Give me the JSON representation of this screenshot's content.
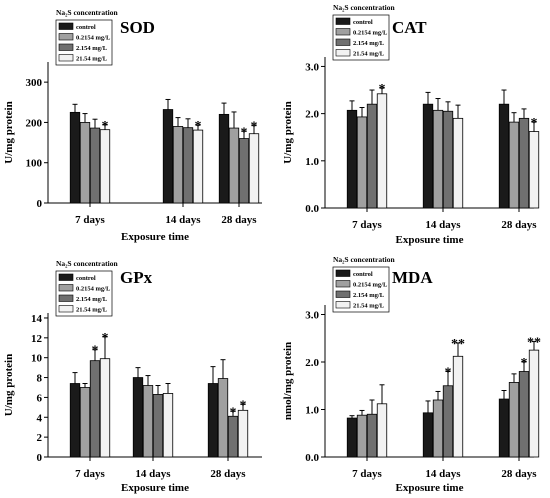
{
  "legend_title": "Na₂S concentration",
  "legend_entries": [
    {
      "label": "control",
      "color": "#1a1a1a"
    },
    {
      "label": "0.2154 mg/L",
      "color": "#a0a0a0"
    },
    {
      "label": "2.154 mg/L",
      "color": "#707070"
    },
    {
      "label": "21.54 mg/L",
      "color": "#f2f2f2"
    }
  ],
  "chart_data": [
    {
      "type": "bar",
      "title": "SOD",
      "xlabel": "Exposure time",
      "ylabel": "U/mg protein",
      "categories": [
        "7 days",
        "14 days",
        "28 days"
      ],
      "ylim": [
        0,
        350
      ],
      "yticks": [
        "0",
        "100",
        "200",
        "300"
      ],
      "yticks_values": [
        0,
        100,
        200,
        300
      ],
      "series": [
        {
          "name": "control",
          "values": [
            225,
            232,
            220
          ],
          "errors": [
            20,
            25,
            28
          ],
          "sig": [
            "",
            "",
            ""
          ]
        },
        {
          "name": "0.2154 mg/L",
          "values": [
            200,
            190,
            186
          ],
          "errors": [
            22,
            22,
            40
          ],
          "sig": [
            "",
            "",
            ""
          ]
        },
        {
          "name": "2.154 mg/L",
          "values": [
            186,
            187,
            160
          ],
          "errors": [
            22,
            22,
            18
          ],
          "sig": [
            "",
            "",
            "*"
          ]
        },
        {
          "name": "21.54 mg/L",
          "values": [
            182,
            181,
            172
          ],
          "errors": [
            12,
            12,
            20
          ],
          "sig": [
            "*",
            "*",
            "*"
          ]
        }
      ]
    },
    {
      "type": "bar",
      "title": "CAT",
      "xlabel": "Exposure time",
      "ylabel": "U/mg protein",
      "categories": [
        "7 days",
        "14 days",
        "28 days"
      ],
      "ylim": [
        0,
        3.2
      ],
      "yticks": [
        "0.0",
        "1.0",
        "2.0",
        "3.0"
      ],
      "yticks_values": [
        0,
        1,
        2,
        3
      ],
      "series": [
        {
          "name": "control",
          "values": [
            2.07,
            2.2,
            2.2
          ],
          "errors": [
            0.2,
            0.25,
            0.3
          ],
          "sig": [
            "",
            "",
            ""
          ]
        },
        {
          "name": "0.2154 mg/L",
          "values": [
            1.93,
            2.07,
            1.82
          ],
          "errors": [
            0.2,
            0.25,
            0.2
          ],
          "sig": [
            "",
            "",
            ""
          ]
        },
        {
          "name": "2.154 mg/L",
          "values": [
            2.2,
            2.05,
            1.9
          ],
          "errors": [
            0.3,
            0.2,
            0.2
          ],
          "sig": [
            "",
            "",
            ""
          ]
        },
        {
          "name": "21.54 mg/L",
          "values": [
            2.42,
            1.9,
            1.62
          ],
          "errors": [
            0.12,
            0.28,
            0.2
          ],
          "sig": [
            "*",
            "",
            "*"
          ]
        }
      ]
    },
    {
      "type": "bar",
      "title": "GPx",
      "xlabel": "Exposure time",
      "ylabel": "U/mg protein",
      "categories": [
        "7 days",
        "14 days",
        "28 days"
      ],
      "ylim": [
        0,
        14.5
      ],
      "yticks": [
        "0",
        "2",
        "4",
        "6",
        "8",
        "10",
        "12",
        "14"
      ],
      "yticks_values": [
        0,
        2,
        4,
        6,
        8,
        10,
        12,
        14
      ],
      "series": [
        {
          "name": "control",
          "values": [
            7.4,
            8.0,
            7.4
          ],
          "errors": [
            1.1,
            1.0,
            1.7
          ],
          "sig": [
            "",
            "",
            ""
          ]
        },
        {
          "name": "0.2154 mg/L",
          "values": [
            7.0,
            7.2,
            7.9
          ],
          "errors": [
            0.4,
            1.0,
            1.9
          ],
          "sig": [
            "",
            "",
            ""
          ]
        },
        {
          "name": "2.154 mg/L",
          "values": [
            9.7,
            6.3,
            4.1
          ],
          "errors": [
            1.1,
            0.9,
            0.5
          ],
          "sig": [
            "*",
            "",
            "*"
          ]
        },
        {
          "name": "21.54 mg/L",
          "values": [
            9.9,
            6.4,
            4.7
          ],
          "errors": [
            2.2,
            1.0,
            0.6
          ],
          "sig": [
            "*",
            "",
            "*"
          ]
        }
      ]
    },
    {
      "type": "bar",
      "title": "MDA",
      "xlabel": "Exposure time",
      "ylabel": "nmol/mg protein",
      "categories": [
        "7 days",
        "14 days",
        "28 days"
      ],
      "ylim": [
        0,
        3.2
      ],
      "yticks": [
        "0.0",
        "1.0",
        "2.0",
        "3.0"
      ],
      "yticks_values": [
        0,
        1,
        2,
        3
      ],
      "series": [
        {
          "name": "control",
          "values": [
            0.82,
            0.93,
            1.22
          ],
          "errors": [
            0.05,
            0.25,
            0.18
          ],
          "sig": [
            "",
            "",
            ""
          ]
        },
        {
          "name": "0.2154 mg/L",
          "values": [
            0.88,
            1.2,
            1.57
          ],
          "errors": [
            0.1,
            0.18,
            0.18
          ],
          "sig": [
            "",
            "",
            ""
          ]
        },
        {
          "name": "2.154 mg/L",
          "values": [
            0.9,
            1.5,
            1.8
          ],
          "errors": [
            0.3,
            0.3,
            0.2
          ],
          "sig": [
            "",
            "*",
            "*"
          ]
        },
        {
          "name": "21.54 mg/L",
          "values": [
            1.12,
            2.12,
            2.25
          ],
          "errors": [
            0.4,
            0.28,
            0.18
          ],
          "sig": [
            "",
            "**",
            "**"
          ]
        }
      ]
    }
  ]
}
